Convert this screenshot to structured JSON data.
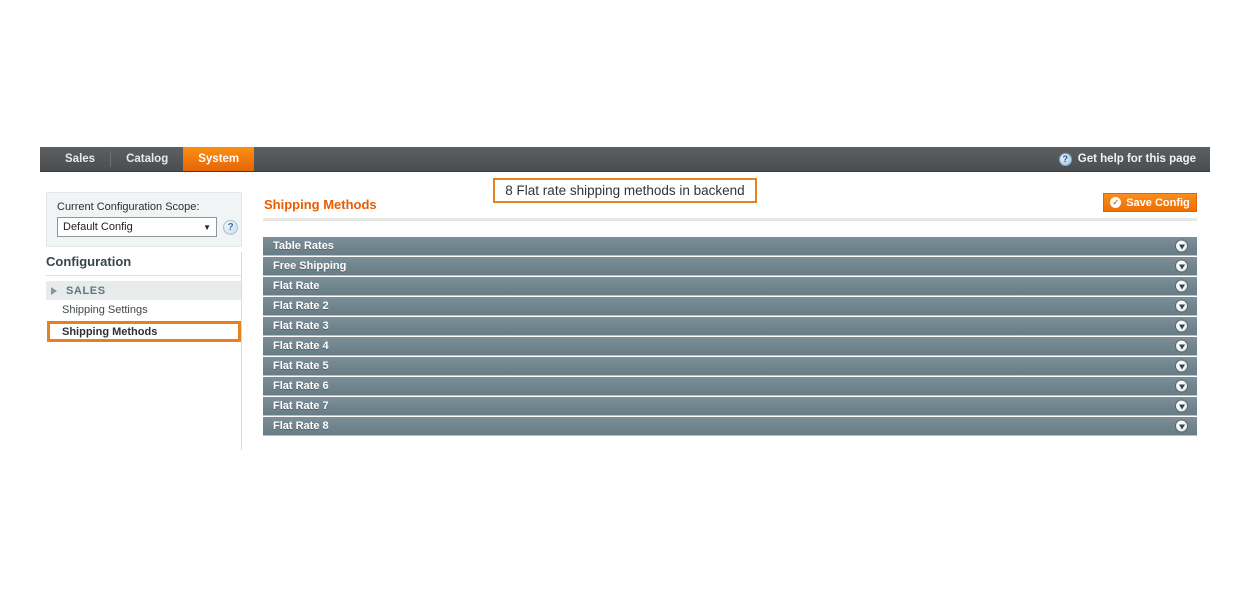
{
  "nav": {
    "tabs": [
      {
        "label": "Sales"
      },
      {
        "label": "Catalog"
      },
      {
        "label": "System"
      }
    ],
    "active_tab": "System",
    "help_link": "Get help for this page",
    "help_icon_glyph": "?"
  },
  "sidebar": {
    "scope_label": "Current Configuration Scope:",
    "scope_value": "Default Config",
    "scope_caret": "▼",
    "scope_help_glyph": "?",
    "heading": "Configuration",
    "section_label": "SALES",
    "items": [
      {
        "label": "Shipping Settings"
      },
      {
        "label": "Shipping Methods"
      }
    ],
    "highlighted_item": "Shipping Methods"
  },
  "main": {
    "title": "Shipping Methods",
    "annotation": "8 Flat rate shipping methods in backend",
    "save_button": "Save Config",
    "save_check_glyph": "✓",
    "sections": [
      "Table Rates",
      "Free Shipping",
      "Flat Rate",
      "Flat Rate 2",
      "Flat Rate 3",
      "Flat Rate 4",
      "Flat Rate 5",
      "Flat Rate 6",
      "Flat Rate 7",
      "Flat Rate 8"
    ]
  },
  "colors": {
    "accent_orange": "#eb5c01",
    "highlight_border": "#e5821f",
    "nav_background": "#4f5255",
    "active_tab_orange": "#f07806",
    "accordion_header": "#73868f",
    "button_orange": "#f67f0d"
  }
}
